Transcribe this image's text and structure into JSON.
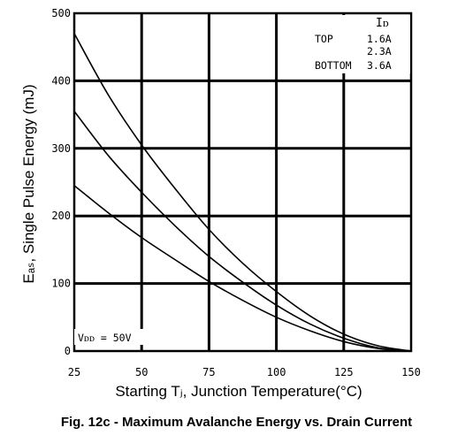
{
  "chart_data": {
    "type": "line",
    "caption": "Fig. 12c - Maximum Avalanche Energy vs. Drain Current",
    "xlabel": "Starting Tⱼ, Junction Temperature(°C)",
    "ylabel": "Eₐₛ, Single Pulse Energy (mJ)",
    "xlim": [
      25,
      150
    ],
    "ylim": [
      0,
      500
    ],
    "x_ticks": [
      "25",
      "50",
      "75",
      "100",
      "125",
      "150"
    ],
    "y_ticks": [
      "0",
      "100",
      "200",
      "300",
      "400",
      "500"
    ],
    "grid": true,
    "legend": {
      "title": "Iᴅ",
      "position": "top-right",
      "rows": [
        {
          "prefix": "TOP",
          "value": "1.6A"
        },
        {
          "prefix": "",
          "value": "2.3A"
        },
        {
          "prefix": "BOTTOM",
          "value": "3.6A"
        }
      ]
    },
    "annotation": "Vᴅᴅ = 50V",
    "series": [
      {
        "name": "1.6A",
        "x": [
          25,
          37.5,
          50,
          62.5,
          75,
          87.5,
          100,
          112.5,
          125,
          137.5,
          150
        ],
        "values": [
          470,
          380,
          305,
          240,
          180,
          130,
          88,
          52,
          25,
          8,
          0
        ]
      },
      {
        "name": "2.3A",
        "x": [
          25,
          37.5,
          50,
          62.5,
          75,
          87.5,
          100,
          112.5,
          125,
          137.5,
          150
        ],
        "values": [
          355,
          290,
          235,
          185,
          140,
          102,
          68,
          40,
          19,
          5,
          0
        ]
      },
      {
        "name": "3.6A",
        "x": [
          25,
          37.5,
          50,
          62.5,
          75,
          87.5,
          100,
          112.5,
          125,
          137.5,
          150
        ],
        "values": [
          245,
          205,
          168,
          135,
          103,
          75,
          50,
          30,
          14,
          4,
          0
        ]
      }
    ]
  }
}
